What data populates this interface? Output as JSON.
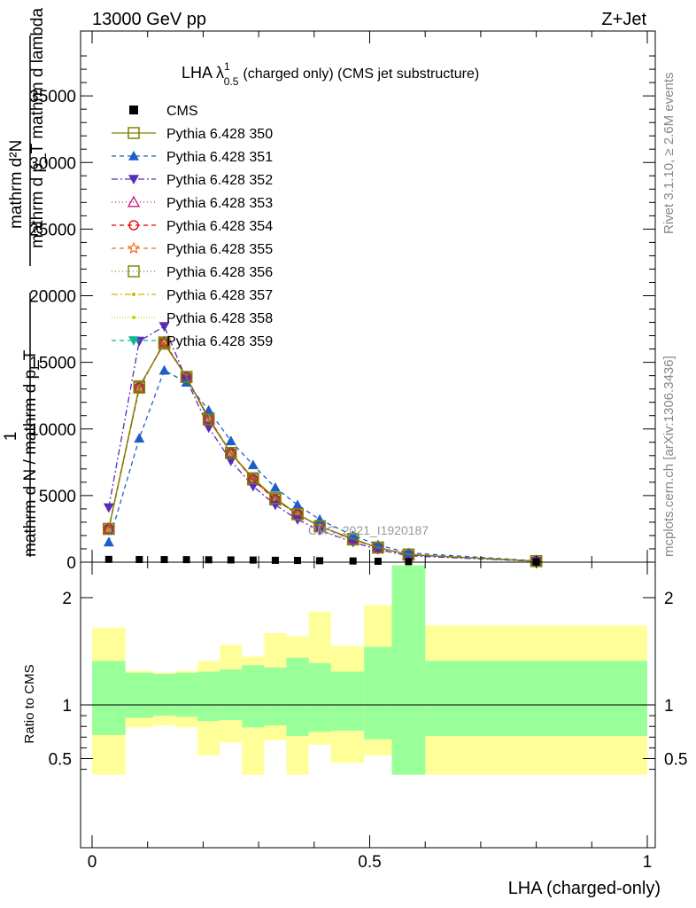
{
  "header": {
    "left": "13000 GeV pp",
    "right": "Z+Jet"
  },
  "side_labels": {
    "rivet": "Rivet 3.1.10, ≥ 2.6M events",
    "mcplots": "mcplots.cern.ch [arXiv:1306.3436]"
  },
  "watermark": "CMS_2021_I1920187",
  "chart_data": [
    {
      "type": "line",
      "title_main": "LHA λ",
      "title_sup": "1",
      "title_sub": "0.5",
      "title_rest": "(charged only) (CMS jet substructure)",
      "ylabel_lines": [
        "mathrm d²N",
        "mathrm d p_T mathrm d lambda",
        "1",
        "mathrm d N / mathrm d p_T"
      ],
      "ylabel_top": "mathrm d²N",
      "ylabel_mid": "mathrm d p_T mathrm d lambda",
      "ylabel_one": "1",
      "ylabel_bottom": "mathrm d N / mathrm d p_T",
      "xlim": [
        0,
        1
      ],
      "ylim": [
        0,
        40000
      ],
      "yticks": [
        0,
        5000,
        10000,
        15000,
        20000,
        25000,
        30000,
        35000
      ],
      "ytick_labels": [
        "0",
        "5000",
        "10000",
        "15000",
        "20000",
        "25000",
        "30000",
        "35000"
      ],
      "x": [
        0.03,
        0.085,
        0.13,
        0.17,
        0.21,
        0.25,
        0.29,
        0.33,
        0.37,
        0.41,
        0.47,
        0.515,
        0.57,
        0.8
      ],
      "cms": {
        "name": "CMS",
        "values": [
          210,
          200,
          195,
          190,
          180,
          170,
          160,
          140,
          130,
          110,
          90,
          70,
          40,
          10
        ]
      },
      "series": [
        {
          "name": "Pythia 6.428 350",
          "color": "#808000",
          "dash": "",
          "marker": "square-open",
          "values": [
            2500,
            13200,
            16400,
            13900,
            10700,
            8200,
            6300,
            4800,
            3600,
            2700,
            1750,
            1100,
            580,
            80
          ]
        },
        {
          "name": "Pythia 6.428 351",
          "color": "#1f5ec8",
          "dash": "5,4",
          "marker": "triangle-up",
          "values": [
            1500,
            9300,
            14400,
            13500,
            11400,
            9100,
            7300,
            5600,
            4300,
            3200,
            2000,
            1300,
            700,
            100
          ]
        },
        {
          "name": "Pythia 6.428 352",
          "color": "#5b2bb8",
          "dash": "7,3,2,3",
          "marker": "triangle-down",
          "values": [
            4100,
            16600,
            17700,
            13700,
            10100,
            7600,
            5700,
            4300,
            3200,
            2400,
            1500,
            950,
            480,
            60
          ]
        },
        {
          "name": "Pythia 6.428 353",
          "color": "#c0187a",
          "dash": "1,3",
          "marker": "triangle-open",
          "values": [
            2500,
            13100,
            16500,
            13900,
            10800,
            8200,
            6200,
            4700,
            3600,
            2700,
            1700,
            1100,
            560,
            80
          ]
        },
        {
          "name": "Pythia 6.428 354",
          "color": "#e00000",
          "dash": "5,4",
          "marker": "circle-open",
          "values": [
            2500,
            13100,
            16500,
            13900,
            10800,
            8200,
            6200,
            4700,
            3600,
            2700,
            1700,
            1100,
            560,
            80
          ]
        },
        {
          "name": "Pythia 6.428 355",
          "color": "#f07020",
          "dash": "5,4",
          "marker": "star-open",
          "values": [
            2500,
            13100,
            16500,
            13900,
            10800,
            8200,
            6200,
            4700,
            3600,
            2700,
            1700,
            1100,
            560,
            80
          ]
        },
        {
          "name": "Pythia 6.428 356",
          "color": "#7c8c10",
          "dash": "1,3",
          "marker": "square-open",
          "values": [
            2500,
            13100,
            16500,
            13900,
            10800,
            8200,
            6200,
            4700,
            3600,
            2700,
            1700,
            1100,
            560,
            80
          ]
        },
        {
          "name": "Pythia 6.428 357",
          "color": "#d4b000",
          "dash": "7,3,2,3",
          "marker": "dot",
          "values": [
            2500,
            13100,
            16500,
            13900,
            10800,
            8200,
            6200,
            4700,
            3600,
            2700,
            1700,
            1100,
            560,
            80
          ]
        },
        {
          "name": "Pythia 6.428 358",
          "color": "#b8e000",
          "dash": "1,2",
          "marker": "dot",
          "values": [
            2500,
            13100,
            16500,
            13900,
            10800,
            8200,
            6200,
            4700,
            3600,
            2700,
            1700,
            1100,
            560,
            80
          ]
        },
        {
          "name": "Pythia 6.428 359",
          "color": "#10b890",
          "dash": "5,4",
          "marker": "triangle-down",
          "values": [
            2500,
            13100,
            16500,
            13900,
            10800,
            8200,
            6200,
            4700,
            3600,
            2700,
            1700,
            1100,
            560,
            80
          ]
        }
      ],
      "legend_position": "top-left"
    },
    {
      "type": "area",
      "ylabel": "Ratio to CMS",
      "xlabel": "LHA (charged-only)",
      "xlim": [
        0,
        1
      ],
      "ylim": [
        0.35,
        2.3
      ],
      "yticks": [
        0.5,
        1,
        2
      ],
      "ytick_labels": [
        "0.5",
        "1",
        "2"
      ],
      "xticks": [
        0,
        0.5,
        1
      ],
      "xtick_labels": [
        "0",
        "0.5",
        "1"
      ],
      "bin_edges": [
        0,
        0.06,
        0.11,
        0.15,
        0.19,
        0.23,
        0.27,
        0.31,
        0.35,
        0.39,
        0.43,
        0.49,
        0.54,
        0.6,
        1.0
      ],
      "green_band": {
        "upper": [
          1.41,
          1.3,
          1.29,
          1.3,
          1.31,
          1.33,
          1.37,
          1.35,
          1.44,
          1.39,
          1.31,
          1.54,
          2.35,
          1.41
        ],
        "lower": [
          0.72,
          0.88,
          0.9,
          0.89,
          0.85,
          0.86,
          0.79,
          0.81,
          0.71,
          0.75,
          0.76,
          0.68,
          0.35,
          0.71
        ]
      },
      "yellow_band": {
        "upper": [
          1.72,
          1.32,
          1.3,
          1.32,
          1.41,
          1.56,
          1.45,
          1.67,
          1.64,
          1.87,
          1.55,
          1.93,
          2.35,
          1.74
        ],
        "lower": [
          0.35,
          0.79,
          0.81,
          0.79,
          0.53,
          0.65,
          0.35,
          0.67,
          0.35,
          0.63,
          0.46,
          0.53,
          0.35,
          0.35
        ]
      },
      "reference_line": 1
    }
  ]
}
